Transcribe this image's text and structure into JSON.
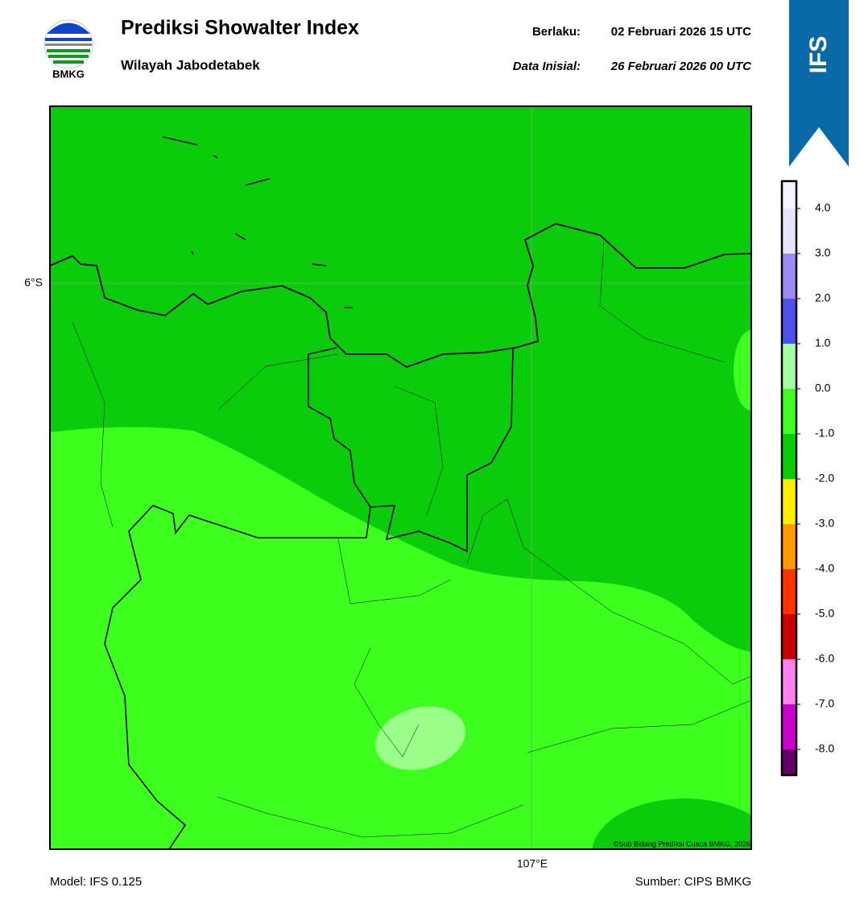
{
  "header": {
    "logo_text": "BMKG",
    "title": "Prediksi Showalter Index",
    "subtitle": "Wilayah Jabodetabek",
    "valid_label": "Berlaku:",
    "valid_time": "02 Februari 2026 15 UTC",
    "init_label": "Data Inisial:",
    "init_time": "26 Februari 2026 00 UTC"
  },
  "badge": "IFS",
  "map": {
    "lat_label": "6°S",
    "lon_label": "107°E",
    "credit": "©Sub Bidang Prediksi Cuaca BMKG, 2026"
  },
  "colorbar": {
    "ticks": [
      "4.0",
      "3.0",
      "2.0",
      "1.0",
      "0.0",
      "-1.0",
      "-2.0",
      "-3.0",
      "-4.0",
      "-5.0",
      "-6.0",
      "-7.0",
      "-8.0"
    ],
    "colors": [
      "#f4f4ff",
      "#e4e4fa",
      "#9a8cf2",
      "#5050f0",
      "#a4ffa0",
      "#40ff20",
      "#0acc0a",
      "#ffee00",
      "#ff9a00",
      "#ff3300",
      "#cc0000",
      "#ff80ee",
      "#cc00cc",
      "#660066"
    ]
  },
  "footer": {
    "model": "Model: IFS 0.125",
    "source": "Sumber: CIPS BMKG"
  }
}
